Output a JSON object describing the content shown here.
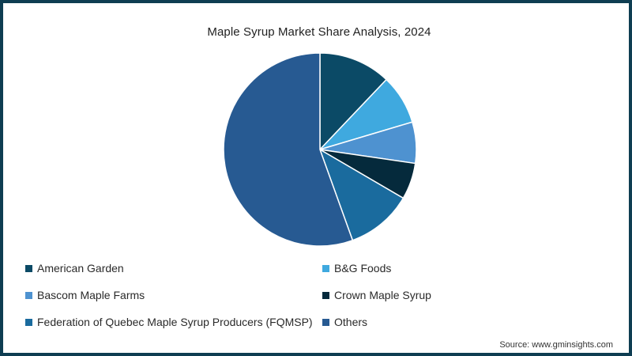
{
  "chart_data": {
    "type": "pie",
    "title": "Maple Syrup Market Share Analysis, 2024",
    "categories": [
      "American Garden",
      "B&G Foods",
      "Bascom Maple Farms",
      "Crown Maple Syrup",
      "Federation of Quebec Maple Syrup Producers (FQMSP)",
      "Others"
    ],
    "values": [
      12.1,
      8.3,
      6.9,
      6.1,
      11.1,
      55.5
    ],
    "unit": "%",
    "colors": [
      "#0b4a66",
      "#3fa9df",
      "#4e92d0",
      "#052a3c",
      "#1a6b9e",
      "#275a92"
    ],
    "start_angle_deg": 0,
    "direction": "clockwise",
    "legend_position": "bottom",
    "data_labels": false
  },
  "header": {
    "title": "Maple Syrup Market Share Analysis, 2024"
  },
  "legend": {
    "items": [
      {
        "label": "American Garden",
        "color": "#0b4a66"
      },
      {
        "label": "B&G Foods",
        "color": "#3fa9df"
      },
      {
        "label": "Bascom Maple Farms",
        "color": "#4e92d0"
      },
      {
        "label": "Crown Maple Syrup",
        "color": "#052a3c"
      },
      {
        "label": "Federation of Quebec Maple Syrup Producers (FQMSP)",
        "color": "#1a6b9e"
      },
      {
        "label": "Others",
        "color": "#275a92"
      }
    ]
  },
  "footer": {
    "source": "Source: www.gminsights.com"
  },
  "theme": {
    "frame_border": "#0e3d52",
    "background": "#ffffff"
  }
}
